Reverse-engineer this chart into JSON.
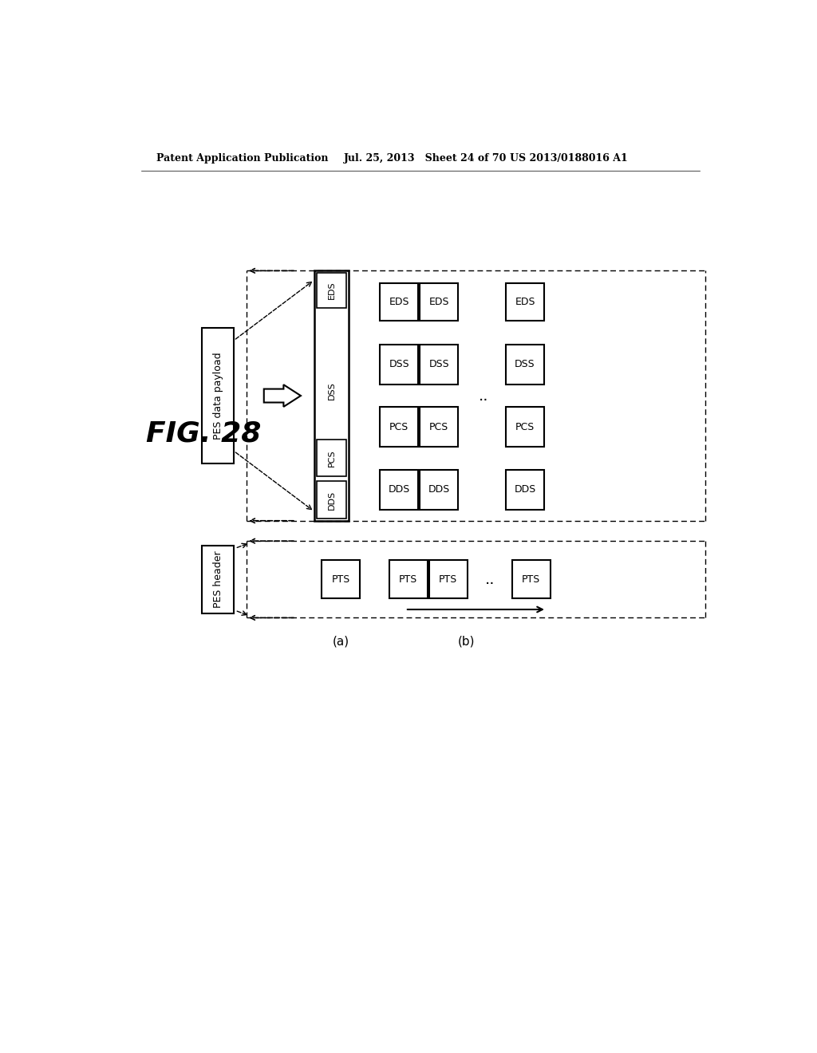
{
  "header_left": "Patent Application Publication",
  "header_mid": "Jul. 25, 2013   Sheet 24 of 70",
  "header_right": "US 2013/0188016 A1",
  "fig_label": "FIG. 28",
  "bg_color": "#ffffff",
  "section_a_label": "(a)",
  "section_b_label": "(b)",
  "pes_payload_label": "PES data payload",
  "pes_header_label": "PES header",
  "tall_box_labels_top_to_bot": [
    "EDS",
    "DSS",
    "PCS",
    "DDS"
  ],
  "grid_row_labels": [
    "EDS",
    "DSS",
    "PCS",
    "DDS"
  ],
  "pts_label": "PTS"
}
